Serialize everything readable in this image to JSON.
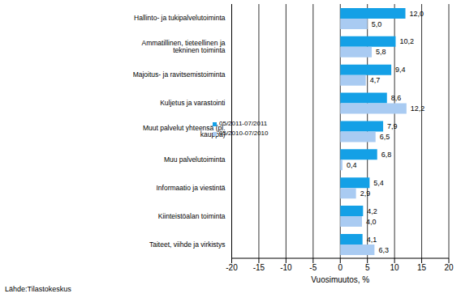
{
  "chart_data": {
    "type": "bar",
    "orientation": "horizontal",
    "categories": [
      "Hallinto- ja tukipalvelutoiminta",
      "Ammatillinen, tieteellinen ja tekninen toiminta",
      "Majoitus- ja ravitsemistoiminta",
      "Kuljetus ja varastointi",
      "Muut palvelut yhteensä (pl. kauppa)",
      "Muu palvelutoiminta",
      "Informaatio ja viestintä",
      "Kiinteistöalan toiminta",
      "Taiteet, viihde ja virkistys"
    ],
    "series": [
      {
        "name": "05/2011-07/2011",
        "color": "#14a0e6",
        "values": [
          12.0,
          10.2,
          9.4,
          8.6,
          7.9,
          6.8,
          5.4,
          4.2,
          4.1
        ],
        "value_labels": [
          "12,0",
          "10,2",
          "9,4",
          "8,6",
          "7,9",
          "6,8",
          "5,4",
          "4,2",
          "4,1"
        ]
      },
      {
        "name": "05/2010-07/2010",
        "color": "#a9cbf2",
        "values": [
          5.0,
          5.8,
          4.7,
          12.2,
          6.5,
          0.4,
          2.9,
          4.0,
          6.3
        ],
        "value_labels": [
          "5,0",
          "5,8",
          "4,7",
          "12,2",
          "6,5",
          "0,4",
          "2,9",
          "4,0",
          "6,3"
        ]
      }
    ],
    "xlabel": "Vuosimuutos, %",
    "xlim": [
      -20,
      20
    ],
    "xticks": [
      -20,
      -15,
      -10,
      -5,
      0,
      5,
      10,
      15,
      20
    ],
    "grid": true,
    "data_labels": true,
    "legend": "left",
    "annotations": [
      "Lähde:Tilastokeskus"
    ]
  }
}
